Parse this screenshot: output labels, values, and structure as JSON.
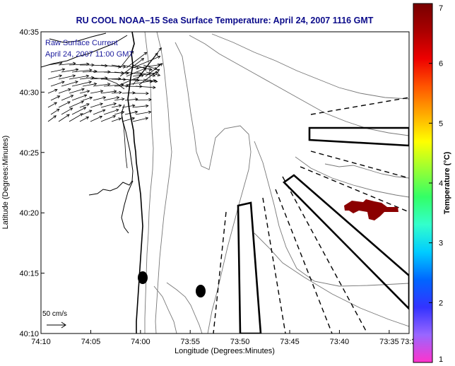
{
  "chart_data": {
    "type": "map",
    "title": "RU COOL  NOAA–15  Sea Surface Temperature:  April 24, 2007 1116 GMT",
    "xlabel": "Longitude (Degrees:Minutes)",
    "ylabel": "Latitude (Degrees:Minutes)",
    "xlim": [
      -74.1667,
      -73.55
    ],
    "ylim": [
      40.1667,
      40.5833
    ],
    "x_ticks": [
      {
        "value": -74.1667,
        "label": "74:10"
      },
      {
        "value": -74.0833,
        "label": "74:05"
      },
      {
        "value": -74.0,
        "label": "74:00"
      },
      {
        "value": -73.9167,
        "label": "73:55"
      },
      {
        "value": -73.8333,
        "label": "73:50"
      },
      {
        "value": -73.75,
        "label": "73:45"
      },
      {
        "value": -73.6667,
        "label": "73:40"
      },
      {
        "value": -73.5833,
        "label": "73:35"
      },
      {
        "value": -73.55,
        "label": "73:3"
      }
    ],
    "y_ticks": [
      {
        "value": 40.1667,
        "label": "40:10"
      },
      {
        "value": 40.25,
        "label": "40:15"
      },
      {
        "value": 40.3333,
        "label": "40:20"
      },
      {
        "value": 40.4167,
        "label": "40:25"
      },
      {
        "value": 40.5,
        "label": "40:30"
      },
      {
        "value": 40.5833,
        "label": "40:35"
      }
    ],
    "inset_legend": [
      "Raw Surface Current",
      "April 24, 2007 11:00 GMT"
    ],
    "scale_label": "50 cm/s",
    "colorbar": {
      "label": "Temperature (°C)",
      "min": 1,
      "max": 7,
      "ticks": [
        1,
        2,
        3,
        4,
        5,
        6,
        7
      ],
      "colors": [
        "#ff33cc",
        "#9966ff",
        "#3333ff",
        "#0066ff",
        "#00ccff",
        "#33ffcc",
        "#33ff66",
        "#99ff33",
        "#ffff00",
        "#ffaa00",
        "#ff5500",
        "#ee0000",
        "#aa0000",
        "#770000"
      ]
    },
    "grid": false
  }
}
